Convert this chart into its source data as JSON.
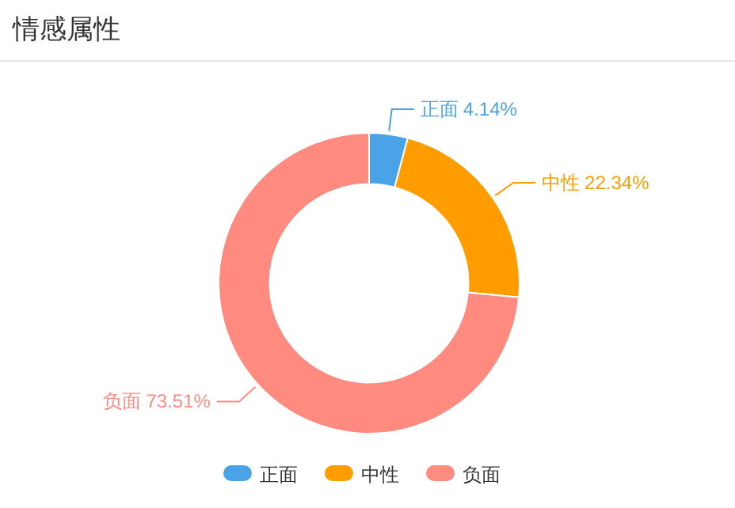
{
  "chart_data": {
    "type": "donut",
    "title": "情感属性",
    "categories": [
      "正面",
      "中性",
      "负面"
    ],
    "values": [
      4.14,
      22.34,
      73.51
    ],
    "value_labels": [
      "4.14%",
      "22.34%",
      "73.51%"
    ],
    "colors": [
      "#4aa3e6",
      "#ff9d00",
      "#ff8a80"
    ],
    "legend": "bottom"
  }
}
